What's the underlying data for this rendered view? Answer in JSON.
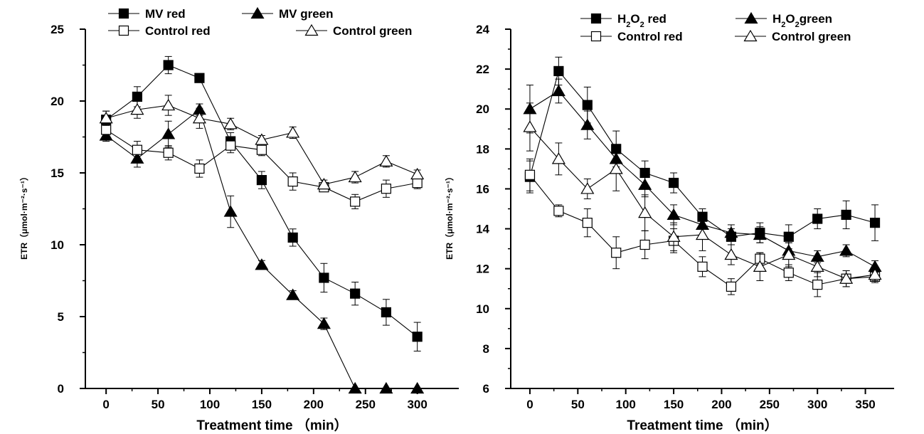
{
  "chart_data": [
    {
      "type": "line",
      "xlabel": "Treatment time （min）",
      "ylabel": "ETR（μmol·m⁻²·s⁻¹）",
      "xlim": [
        -20,
        340
      ],
      "ylim": [
        0,
        25
      ],
      "xticks": [
        "0",
        "50",
        "100",
        "150",
        "200",
        "250",
        "300"
      ],
      "yticks": [
        "0",
        "5",
        "10",
        "15",
        "20",
        "25"
      ],
      "grid": false,
      "legend_position": "top",
      "series": [
        {
          "name": "MV red",
          "marker": "filled-square",
          "x": [
            0,
            30,
            60,
            90,
            120,
            150,
            180,
            210,
            240,
            270,
            300
          ],
          "values": [
            18.7,
            20.3,
            22.5,
            21.6,
            17.2,
            14.5,
            10.5,
            7.7,
            6.6,
            5.3,
            3.6
          ],
          "errors": [
            0.6,
            0.7,
            0.6,
            0.3,
            0.6,
            0.6,
            0.6,
            1.0,
            0.8,
            0.9,
            1.0
          ]
        },
        {
          "name": "MV green",
          "marker": "filled-triangle",
          "x": [
            0,
            30,
            60,
            90,
            120,
            150,
            180,
            210,
            240,
            270,
            300
          ],
          "values": [
            17.6,
            16.0,
            17.7,
            19.4,
            12.3,
            8.6,
            6.5,
            4.5,
            0,
            0,
            0
          ],
          "errors": [
            0.4,
            0.6,
            0.9,
            0.4,
            1.1,
            0.3,
            0.3,
            0.4,
            0,
            0,
            0
          ]
        },
        {
          "name": "Control red",
          "marker": "open-square",
          "x": [
            0,
            30,
            60,
            90,
            120,
            150,
            180,
            210,
            240,
            270,
            300
          ],
          "values": [
            18.0,
            16.6,
            16.4,
            15.3,
            16.9,
            16.6,
            14.4,
            14.0,
            13.0,
            13.9,
            14.3
          ],
          "errors": [
            0.7,
            0.6,
            0.5,
            0.6,
            0.5,
            0.4,
            0.6,
            0.3,
            0.5,
            0.6,
            0.4
          ]
        },
        {
          "name": "Control green",
          "marker": "open-triangle",
          "x": [
            0,
            30,
            60,
            90,
            120,
            150,
            180,
            210,
            240,
            270,
            300
          ],
          "values": [
            18.8,
            19.4,
            19.7,
            18.8,
            18.4,
            17.3,
            17.8,
            14.2,
            14.7,
            15.8,
            14.9
          ],
          "errors": [
            0.5,
            0.6,
            0.7,
            0.7,
            0.4,
            0.3,
            0.4,
            0.3,
            0.4,
            0.4,
            0.3
          ]
        }
      ]
    },
    {
      "type": "line",
      "xlabel": "Treatment time （min）",
      "ylabel": "ETR（μmol·m⁻²·s⁻¹）",
      "xlim": [
        -20,
        380
      ],
      "ylim": [
        6,
        24
      ],
      "xticks": [
        "0",
        "50",
        "100",
        "150",
        "200",
        "250",
        "300",
        "350"
      ],
      "yticks": [
        "6",
        "8",
        "10",
        "12",
        "14",
        "16",
        "18",
        "20",
        "22",
        "24"
      ],
      "grid": false,
      "legend_position": "top",
      "series": [
        {
          "name": "H₂O₂ red",
          "marker": "filled-square",
          "x": [
            0,
            30,
            60,
            90,
            120,
            150,
            180,
            210,
            240,
            270,
            300,
            330,
            360
          ],
          "values": [
            16.6,
            21.9,
            20.2,
            18.0,
            16.8,
            16.3,
            14.6,
            13.6,
            13.8,
            13.6,
            14.5,
            14.7,
            14.3
          ],
          "errors": [
            0.8,
            0.7,
            0.9,
            0.9,
            0.6,
            0.5,
            0.4,
            0.4,
            0.5,
            0.6,
            0.5,
            0.7,
            0.9
          ]
        },
        {
          "name": "H₂O₂green",
          "marker": "filled-triangle",
          "x": [
            0,
            30,
            60,
            90,
            120,
            150,
            180,
            210,
            240,
            270,
            300,
            330,
            360
          ],
          "values": [
            20.0,
            20.9,
            19.2,
            17.5,
            16.2,
            14.7,
            14.2,
            13.8,
            13.7,
            12.9,
            12.6,
            12.9,
            12.1
          ],
          "errors": [
            1.2,
            0.6,
            0.7,
            0.7,
            0.6,
            0.5,
            0.5,
            0.4,
            0.4,
            0.4,
            0.3,
            0.3,
            0.3
          ]
        },
        {
          "name": "Control red",
          "marker": "open-square",
          "x": [
            0,
            30,
            60,
            90,
            120,
            150,
            180,
            210,
            240,
            270,
            300,
            330,
            360
          ],
          "values": [
            16.7,
            14.9,
            14.3,
            12.8,
            13.2,
            13.4,
            12.1,
            11.1,
            12.5,
            11.8,
            11.2,
            11.5,
            11.6
          ],
          "errors": [
            0.8,
            0.3,
            0.7,
            0.8,
            0.7,
            0.6,
            0.5,
            0.4,
            0.3,
            0.4,
            0.6,
            0.4,
            0.3
          ]
        },
        {
          "name": "Control green",
          "marker": "open-triangle",
          "x": [
            0,
            30,
            60,
            90,
            120,
            150,
            180,
            210,
            240,
            270,
            300,
            330,
            360
          ],
          "values": [
            19.1,
            17.5,
            16.0,
            17.0,
            14.8,
            13.6,
            13.7,
            12.7,
            12.1,
            12.7,
            12.1,
            11.5,
            11.7
          ],
          "errors": [
            1.2,
            0.8,
            0.5,
            1.1,
            0.9,
            0.7,
            0.8,
            0.5,
            0.7,
            0.6,
            0.5,
            0.4,
            0.3
          ]
        }
      ]
    }
  ]
}
